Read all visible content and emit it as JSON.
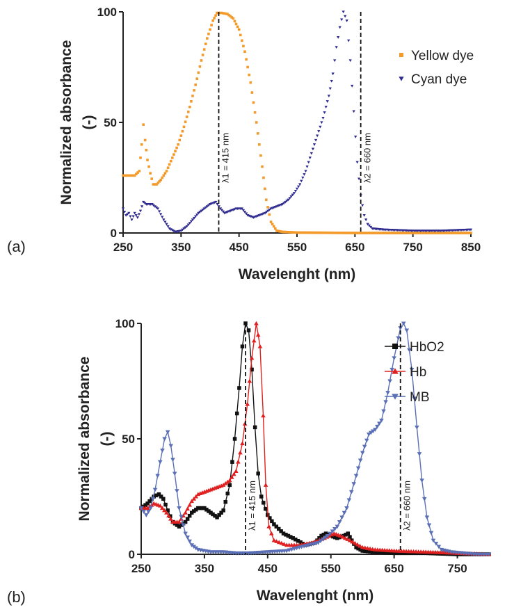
{
  "chart_data": [
    {
      "type": "scatter",
      "panel_label": "(a)",
      "xlabel": "Wavelenght (nm)",
      "ylabel": "Normalized absorbance (-)",
      "ylabel_lines": [
        "Normalized absorbance",
        "(-)"
      ],
      "xlim": [
        250,
        850
      ],
      "ylim": [
        0,
        100
      ],
      "xticks": [
        250,
        350,
        450,
        550,
        650,
        750,
        850
      ],
      "yticks": [
        0,
        50,
        100
      ],
      "legend_position": "top-right",
      "annotations": [
        {
          "x": 415,
          "label": "λ1 = 415 nm",
          "style": "dashed"
        },
        {
          "x": 660,
          "label": "λ2 = 660 nm",
          "style": "dashed"
        }
      ],
      "series": [
        {
          "name": "Yellow dye",
          "color": "#f39a2b",
          "marker": "square",
          "points": [
            [
              250,
              26
            ],
            [
              260,
              26
            ],
            [
              270,
              26
            ],
            [
              278,
              28
            ],
            [
              282,
              40
            ],
            [
              285,
              49
            ],
            [
              288,
              42
            ],
            [
              292,
              33
            ],
            [
              297,
              27
            ],
            [
              302,
              22
            ],
            [
              308,
              22
            ],
            [
              315,
              24
            ],
            [
              325,
              28
            ],
            [
              335,
              34
            ],
            [
              345,
              40
            ],
            [
              355,
              48
            ],
            [
              365,
              57
            ],
            [
              375,
              67
            ],
            [
              385,
              78
            ],
            [
              395,
              88
            ],
            [
              405,
              96
            ],
            [
              412,
              99.5
            ],
            [
              420,
              99.5
            ],
            [
              430,
              99
            ],
            [
              440,
              97
            ],
            [
              450,
              92
            ],
            [
              460,
              82
            ],
            [
              470,
              68
            ],
            [
              480,
              50
            ],
            [
              490,
              30
            ],
            [
              497,
              15
            ],
            [
              505,
              5
            ],
            [
              515,
              1
            ],
            [
              525,
              0.5
            ],
            [
              550,
              0.2
            ],
            [
              600,
              0.1
            ],
            [
              650,
              0
            ],
            [
              700,
              0
            ],
            [
              750,
              0
            ],
            [
              800,
              0
            ],
            [
              850,
              0
            ]
          ]
        },
        {
          "name": "Cyan dye",
          "color": "#2e2a8f",
          "marker": "triangle-down",
          "points": [
            [
              250,
              11
            ],
            [
              255,
              8
            ],
            [
              260,
              9
            ],
            [
              265,
              6
            ],
            [
              270,
              9
            ],
            [
              275,
              7
            ],
            [
              280,
              10
            ],
            [
              285,
              14
            ],
            [
              290,
              13
            ],
            [
              300,
              13
            ],
            [
              310,
              11
            ],
            [
              320,
              6
            ],
            [
              330,
              2
            ],
            [
              340,
              0.5
            ],
            [
              350,
              1
            ],
            [
              360,
              3
            ],
            [
              370,
              6
            ],
            [
              380,
              9
            ],
            [
              390,
              11
            ],
            [
              400,
              13
            ],
            [
              410,
              14
            ],
            [
              418,
              11
            ],
            [
              425,
              9
            ],
            [
              435,
              10
            ],
            [
              445,
              11
            ],
            [
              455,
              11
            ],
            [
              465,
              8
            ],
            [
              475,
              7
            ],
            [
              485,
              8
            ],
            [
              495,
              9
            ],
            [
              505,
              11
            ],
            [
              515,
              12
            ],
            [
              525,
              13
            ],
            [
              535,
              15
            ],
            [
              545,
              18
            ],
            [
              555,
              22
            ],
            [
              565,
              28
            ],
            [
              575,
              36
            ],
            [
              585,
              44
            ],
            [
              595,
              52
            ],
            [
              605,
              62
            ],
            [
              612,
              72
            ],
            [
              618,
              84
            ],
            [
              624,
              93
            ],
            [
              630,
              100
            ],
            [
              636,
              96
            ],
            [
              642,
              78
            ],
            [
              648,
              55
            ],
            [
              654,
              32
            ],
            [
              660,
              17
            ],
            [
              666,
              8
            ],
            [
              672,
              4
            ],
            [
              680,
              2
            ],
            [
              700,
              1.5
            ],
            [
              750,
              1
            ],
            [
              800,
              1
            ],
            [
              850,
              1.5
            ]
          ]
        }
      ]
    },
    {
      "type": "line",
      "panel_label": "(b)",
      "xlabel": "Wavelenght (nm)",
      "ylabel": "Normalized absorbance (-)",
      "ylabel_lines": [
        "Normalized absorbance",
        "(-)"
      ],
      "xlim": [
        250,
        800
      ],
      "ylim": [
        0,
        100
      ],
      "xticks": [
        250,
        350,
        450,
        550,
        650,
        750
      ],
      "yticks": [
        0,
        50,
        100
      ],
      "legend_position": "top-right",
      "annotations": [
        {
          "x": 415,
          "label": "λ1 = 415 nm",
          "style": "dashed"
        },
        {
          "x": 660,
          "label": "λ2 = 660 nm",
          "style": "dashed"
        }
      ],
      "series": [
        {
          "name": "HbO2",
          "color": "#111111",
          "marker": "square",
          "points": [
            [
              250,
              20
            ],
            [
              260,
              22
            ],
            [
              270,
              25
            ],
            [
              278,
              26
            ],
            [
              285,
              24
            ],
            [
              292,
              19
            ],
            [
              300,
              14
            ],
            [
              310,
              12
            ],
            [
              320,
              14
            ],
            [
              330,
              18
            ],
            [
              340,
              20
            ],
            [
              350,
              20
            ],
            [
              360,
              18
            ],
            [
              370,
              16
            ],
            [
              380,
              19
            ],
            [
              390,
              30
            ],
            [
              398,
              50
            ],
            [
              405,
              72
            ],
            [
              410,
              90
            ],
            [
              415,
              100
            ],
            [
              420,
              97
            ],
            [
              425,
              80
            ],
            [
              430,
              55
            ],
            [
              435,
              35
            ],
            [
              440,
              25
            ],
            [
              450,
              17
            ],
            [
              460,
              13
            ],
            [
              475,
              9
            ],
            [
              490,
              7
            ],
            [
              510,
              4
            ],
            [
              525,
              5
            ],
            [
              535,
              8
            ],
            [
              542,
              9
            ],
            [
              550,
              8
            ],
            [
              560,
              7
            ],
            [
              570,
              8
            ],
            [
              577,
              9
            ],
            [
              583,
              6
            ],
            [
              590,
              3
            ],
            [
              600,
              1.5
            ],
            [
              620,
              1
            ],
            [
              650,
              0.5
            ],
            [
              700,
              0.5
            ],
            [
              750,
              0
            ],
            [
              800,
              0
            ]
          ]
        },
        {
          "name": "Hb",
          "color": "#e02020",
          "marker": "triangle-up",
          "points": [
            [
              250,
              20
            ],
            [
              260,
              20
            ],
            [
              270,
              22
            ],
            [
              280,
              21
            ],
            [
              290,
              18
            ],
            [
              300,
              14
            ],
            [
              310,
              14
            ],
            [
              320,
              18
            ],
            [
              330,
              23
            ],
            [
              340,
              26
            ],
            [
              350,
              27
            ],
            [
              360,
              28
            ],
            [
              370,
              29
            ],
            [
              380,
              30
            ],
            [
              390,
              32
            ],
            [
              400,
              36
            ],
            [
              410,
              48
            ],
            [
              418,
              65
            ],
            [
              425,
              85
            ],
            [
              432,
              100
            ],
            [
              438,
              90
            ],
            [
              443,
              60
            ],
            [
              447,
              30
            ],
            [
              452,
              12
            ],
            [
              460,
              6
            ],
            [
              480,
              4
            ],
            [
              500,
              4
            ],
            [
              520,
              5
            ],
            [
              540,
              7
            ],
            [
              555,
              9
            ],
            [
              565,
              8
            ],
            [
              580,
              6
            ],
            [
              600,
              3
            ],
            [
              620,
              2
            ],
            [
              650,
              1.5
            ],
            [
              700,
              1
            ],
            [
              750,
              0.5
            ],
            [
              800,
              0
            ]
          ]
        },
        {
          "name": "MB",
          "color": "#5a6fb5",
          "marker": "triangle-down",
          "points": [
            [
              250,
              20
            ],
            [
              258,
              17
            ],
            [
              265,
              20
            ],
            [
              272,
              28
            ],
            [
              280,
              40
            ],
            [
              287,
              50
            ],
            [
              292,
              53
            ],
            [
              297,
              47
            ],
            [
              303,
              35
            ],
            [
              310,
              20
            ],
            [
              320,
              9
            ],
            [
              330,
              4
            ],
            [
              340,
              2
            ],
            [
              360,
              1
            ],
            [
              380,
              1
            ],
            [
              400,
              0.5
            ],
            [
              420,
              0.5
            ],
            [
              450,
              1
            ],
            [
              480,
              1.5
            ],
            [
              500,
              3
            ],
            [
              515,
              4
            ],
            [
              530,
              5
            ],
            [
              545,
              8
            ],
            [
              560,
              12
            ],
            [
              575,
              20
            ],
            [
              590,
              34
            ],
            [
              600,
              44
            ],
            [
              610,
              52
            ],
            [
              620,
              54
            ],
            [
              630,
              58
            ],
            [
              640,
              70
            ],
            [
              650,
              85
            ],
            [
              660,
              98
            ],
            [
              665,
              100
            ],
            [
              670,
              97
            ],
            [
              678,
              80
            ],
            [
              686,
              55
            ],
            [
              694,
              32
            ],
            [
              702,
              16
            ],
            [
              712,
              6
            ],
            [
              725,
              2
            ],
            [
              740,
              1
            ],
            [
              760,
              0.5
            ],
            [
              780,
              0
            ],
            [
              800,
              0
            ]
          ]
        }
      ]
    }
  ]
}
